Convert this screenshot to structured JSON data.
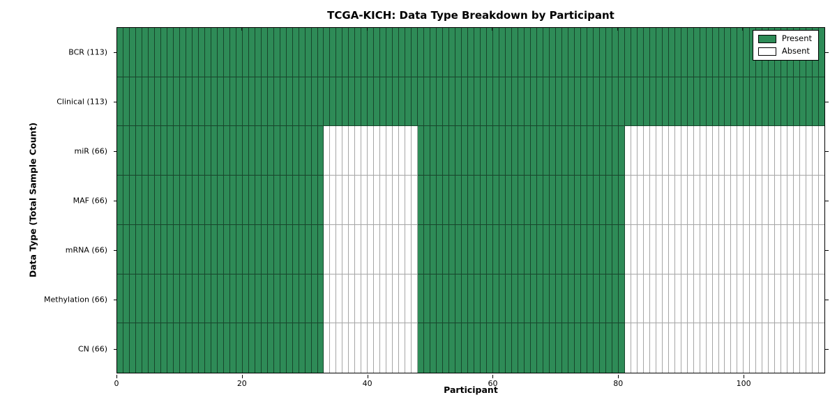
{
  "chart_data": {
    "type": "heatmap",
    "title": "TCGA-KICH: Data Type Breakdown by Participant",
    "xlabel": "Participant",
    "ylabel": "Data Type (Total Sample Count)",
    "n_participants": 113,
    "xlim": [
      0,
      113
    ],
    "x_ticks": [
      0,
      20,
      40,
      60,
      80,
      100
    ],
    "grid": true,
    "legend_position": "upper right",
    "colors": {
      "present": "#2e8b57",
      "absent": "#ffffff",
      "edge_on_present": "rgba(0,0,0,0.5)",
      "edge_on_absent": "#a6a6a6"
    },
    "legend": [
      {
        "label": "Present",
        "state": "present"
      },
      {
        "label": "Absent",
        "state": "absent"
      }
    ],
    "rows": [
      {
        "label": "BCR (113)",
        "data_type": "BCR",
        "present_count": 113,
        "present_ranges": [
          [
            0,
            113
          ]
        ]
      },
      {
        "label": "Clinical (113)",
        "data_type": "Clinical",
        "present_count": 113,
        "present_ranges": [
          [
            0,
            113
          ]
        ]
      },
      {
        "label": "miR (66)",
        "data_type": "miR",
        "present_count": 66,
        "present_ranges": [
          [
            0,
            33
          ],
          [
            48,
            81
          ]
        ]
      },
      {
        "label": "MAF (66)",
        "data_type": "MAF",
        "present_count": 66,
        "present_ranges": [
          [
            0,
            33
          ],
          [
            48,
            81
          ]
        ]
      },
      {
        "label": "mRNA (66)",
        "data_type": "mRNA",
        "present_count": 66,
        "present_ranges": [
          [
            0,
            33
          ],
          [
            48,
            81
          ]
        ]
      },
      {
        "label": "Methylation (66)",
        "data_type": "Methylation",
        "present_count": 66,
        "present_ranges": [
          [
            0,
            33
          ],
          [
            48,
            81
          ]
        ]
      },
      {
        "label": "CN (66)",
        "data_type": "CN",
        "present_count": 66,
        "present_ranges": [
          [
            0,
            33
          ],
          [
            48,
            81
          ]
        ]
      }
    ]
  }
}
